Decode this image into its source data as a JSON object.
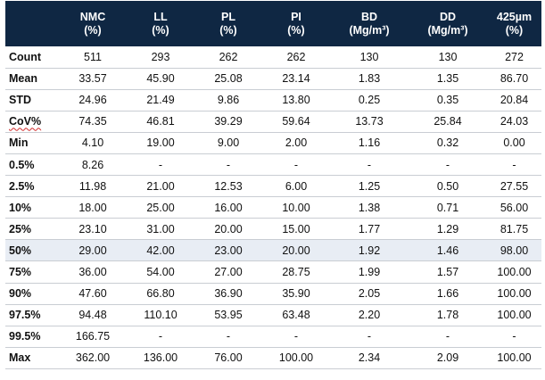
{
  "table": {
    "headers": [
      {
        "line1": "",
        "line2": ""
      },
      {
        "line1": "NMC",
        "line2": "(%)"
      },
      {
        "line1": "LL",
        "line2": "(%)"
      },
      {
        "line1": "PL",
        "line2": "(%)"
      },
      {
        "line1": "PI",
        "line2": "(%)"
      },
      {
        "line1": "BD",
        "line2": "(Mg/m³)"
      },
      {
        "line1": "DD",
        "line2": "(Mg/m³)"
      },
      {
        "line1": "425µm",
        "line2": "(%)"
      }
    ],
    "rows": [
      {
        "label": "Count",
        "values": [
          "511",
          "293",
          "262",
          "262",
          "130",
          "130",
          "272"
        ]
      },
      {
        "label": "Mean",
        "values": [
          "33.57",
          "45.90",
          "25.08",
          "23.14",
          "1.83",
          "1.35",
          "86.70"
        ]
      },
      {
        "label": "STD",
        "values": [
          "24.96",
          "21.49",
          "9.86",
          "13.80",
          "0.25",
          "0.35",
          "20.84"
        ]
      },
      {
        "label": "CoV%",
        "values": [
          "74.35",
          "46.81",
          "39.29",
          "59.64",
          "13.73",
          "25.84",
          "24.03"
        ]
      },
      {
        "label": "Min",
        "values": [
          "4.10",
          "19.00",
          "9.00",
          "2.00",
          "1.16",
          "0.32",
          "0.00"
        ]
      },
      {
        "label": "0.5%",
        "values": [
          "8.26",
          "-",
          "-",
          "-",
          "-",
          "-",
          "-"
        ]
      },
      {
        "label": "2.5%",
        "values": [
          "11.98",
          "21.00",
          "12.53",
          "6.00",
          "1.25",
          "0.50",
          "27.55"
        ]
      },
      {
        "label": "10%",
        "values": [
          "18.00",
          "25.00",
          "16.00",
          "10.00",
          "1.38",
          "0.71",
          "56.00"
        ]
      },
      {
        "label": "25%",
        "values": [
          "23.10",
          "31.00",
          "20.00",
          "15.00",
          "1.77",
          "1.29",
          "81.75"
        ]
      },
      {
        "label": "50%",
        "values": [
          "29.00",
          "42.00",
          "23.00",
          "20.00",
          "1.92",
          "1.46",
          "98.00"
        ]
      },
      {
        "label": "75%",
        "values": [
          "36.00",
          "54.00",
          "27.00",
          "28.75",
          "1.99",
          "1.57",
          "100.00"
        ]
      },
      {
        "label": "90%",
        "values": [
          "47.60",
          "66.80",
          "36.90",
          "35.90",
          "2.05",
          "1.66",
          "100.00"
        ]
      },
      {
        "label": "97.5%",
        "values": [
          "94.48",
          "110.10",
          "53.95",
          "63.48",
          "2.20",
          "1.78",
          "100.00"
        ]
      },
      {
        "label": "99.5%",
        "values": [
          "166.75",
          "-",
          "-",
          "-",
          "-",
          "-",
          "-"
        ]
      },
      {
        "label": "Max",
        "values": [
          "362.00",
          "136.00",
          "76.00",
          "100.00",
          "2.34",
          "2.09",
          "100.00"
        ]
      }
    ]
  },
  "colors": {
    "header_bg": "#0f2743",
    "header_text": "#ffffff",
    "highlight_row_bg": "#e8edf4",
    "row_divider": "#c9cdd3"
  }
}
